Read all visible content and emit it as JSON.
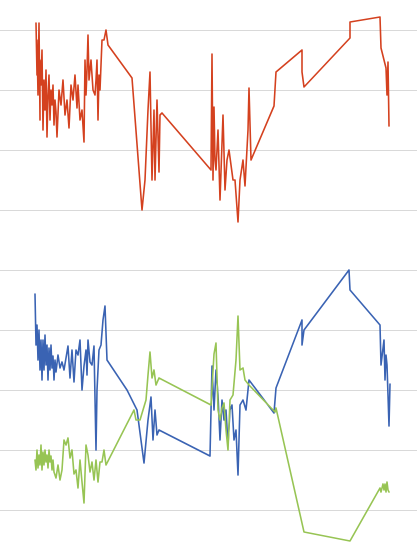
{
  "chart_data": [
    {
      "type": "line",
      "grid": true,
      "legend": "none",
      "ylim": [
        0,
        210
      ],
      "gridlines_y": [
        30,
        90,
        150,
        210
      ],
      "series": [
        {
          "color": "#d4411f",
          "points": [
            [
              36,
              23
            ],
            [
              37,
              75
            ],
            [
              37,
              40
            ],
            [
              38,
              95
            ],
            [
              39,
              23
            ],
            [
              40,
              120
            ],
            [
              40,
              60
            ],
            [
              41,
              85
            ],
            [
              42,
              50
            ],
            [
              43,
              130
            ],
            [
              44,
              80
            ],
            [
              45,
              110
            ],
            [
              46,
              70
            ],
            [
              47,
              137
            ],
            [
              48,
              95
            ],
            [
              49,
              75
            ],
            [
              50,
              120
            ],
            [
              51,
              90
            ],
            [
              52,
              105
            ],
            [
              53,
              85
            ],
            [
              54,
              125
            ],
            [
              55,
              100
            ],
            [
              56,
              112
            ],
            [
              57,
              137
            ],
            [
              59,
              90
            ],
            [
              61,
              105
            ],
            [
              63,
              80
            ],
            [
              65,
              115
            ],
            [
              67,
              100
            ],
            [
              69,
              128
            ],
            [
              71,
              85
            ],
            [
              73,
              100
            ],
            [
              75,
              75
            ],
            [
              77,
              108
            ],
            [
              78,
              85
            ],
            [
              80,
              120
            ],
            [
              82,
              110
            ],
            [
              84,
              142
            ],
            [
              85,
              60
            ],
            [
              86,
              95
            ],
            [
              87,
              70
            ],
            [
              88,
              35
            ],
            [
              89,
              80
            ],
            [
              91,
              60
            ],
            [
              93,
              90
            ],
            [
              95,
              95
            ],
            [
              96,
              80
            ],
            [
              97,
              60
            ],
            [
              98,
              120
            ],
            [
              99,
              75
            ],
            [
              100,
              90
            ],
            [
              102,
              40
            ],
            [
              104,
              40
            ],
            [
              106,
              30
            ],
            [
              108,
              45
            ],
            [
              132,
              78
            ],
            [
              142,
              210
            ],
            [
              145,
              180
            ],
            [
              148,
              110
            ],
            [
              150,
              72
            ],
            [
              152,
              180
            ],
            [
              154,
              110
            ],
            [
              155,
              180
            ],
            [
              157,
              100
            ],
            [
              159,
              172
            ],
            [
              160,
              115
            ],
            [
              162,
              113
            ],
            [
              211,
              170
            ],
            [
              212,
              54
            ],
            [
              213,
              180
            ],
            [
              214,
              107
            ],
            [
              215,
              160
            ],
            [
              216,
              170
            ],
            [
              218,
              130
            ],
            [
              220,
              200
            ],
            [
              223,
              115
            ],
            [
              225,
              190
            ],
            [
              227,
              160
            ],
            [
              229,
              150
            ],
            [
              233,
              180
            ],
            [
              235,
              180
            ],
            [
              238,
              222
            ],
            [
              240,
              180
            ],
            [
              243,
              160
            ],
            [
              245,
              186
            ],
            [
              248,
              130
            ],
            [
              249,
              88
            ],
            [
              251,
              160
            ],
            [
              274,
              106
            ],
            [
              276,
              72
            ],
            [
              302,
              50
            ],
            [
              302,
              72
            ],
            [
              304,
              87
            ],
            [
              350,
              38
            ],
            [
              350,
              22
            ],
            [
              380,
              17
            ],
            [
              381,
              48
            ],
            [
              384,
              60
            ],
            [
              386,
              68
            ],
            [
              387,
              95
            ],
            [
              388,
              62
            ],
            [
              389,
              126
            ]
          ]
        }
      ]
    },
    {
      "type": "line",
      "grid": true,
      "legend": "none",
      "ylim": [
        0,
        570
      ],
      "gridlines_y": [
        270,
        330,
        390,
        450,
        510
      ],
      "series": [
        {
          "color": "#3a63b3",
          "points": [
            [
              35,
              294
            ],
            [
              36,
              345
            ],
            [
              37,
              325
            ],
            [
              38,
              360
            ],
            [
              39,
              330
            ],
            [
              40,
              370
            ],
            [
              41,
              340
            ],
            [
              42,
              380
            ],
            [
              43,
              340
            ],
            [
              44,
              370
            ],
            [
              45,
              335
            ],
            [
              46,
              365
            ],
            [
              47,
              345
            ],
            [
              48,
              380
            ],
            [
              49,
              348
            ],
            [
              50,
              370
            ],
            [
              51,
              345
            ],
            [
              52,
              368
            ],
            [
              53,
              356
            ],
            [
              54,
              380
            ],
            [
              55,
              360
            ],
            [
              56,
              372
            ],
            [
              58,
              355
            ],
            [
              60,
              368
            ],
            [
              62,
              362
            ],
            [
              64,
              370
            ],
            [
              66,
              358
            ],
            [
              68,
              346
            ],
            [
              70,
              378
            ],
            [
              72,
              350
            ],
            [
              74,
              382
            ],
            [
              76,
              350
            ],
            [
              78,
              355
            ],
            [
              80,
              340
            ],
            [
              82,
              390
            ],
            [
              84,
              366
            ],
            [
              86,
              350
            ],
            [
              87,
              375
            ],
            [
              88,
              340
            ],
            [
              90,
              362
            ],
            [
              92,
              365
            ],
            [
              94,
              346
            ],
            [
              96,
              450
            ],
            [
              97,
              390
            ],
            [
              99,
              350
            ],
            [
              101,
              345
            ],
            [
              103,
              320
            ],
            [
              105,
              306
            ],
            [
              107,
              360
            ],
            [
              127,
              390
            ],
            [
              137,
              410
            ],
            [
              144,
              463
            ],
            [
              148,
              420
            ],
            [
              151,
              397
            ],
            [
              153,
              440
            ],
            [
              155,
              410
            ],
            [
              157,
              435
            ],
            [
              159,
              430
            ],
            [
              210,
              456
            ],
            [
              212,
              366
            ],
            [
              214,
              410
            ],
            [
              216,
              370
            ],
            [
              218,
              395
            ],
            [
              220,
              440
            ],
            [
              222,
              400
            ],
            [
              224,
              420
            ],
            [
              226,
              410
            ],
            [
              228,
              445
            ],
            [
              230,
              410
            ],
            [
              232,
              405
            ],
            [
              234,
              440
            ],
            [
              236,
              430
            ],
            [
              238,
              475
            ],
            [
              240,
              405
            ],
            [
              243,
              400
            ],
            [
              246,
              410
            ],
            [
              249,
              380
            ],
            [
              274,
              413
            ],
            [
              276,
              388
            ],
            [
              302,
              320
            ],
            [
              302,
              345
            ],
            [
              304,
              330
            ],
            [
              349,
              270
            ],
            [
              350,
              290
            ],
            [
              380,
              325
            ],
            [
              381,
              365
            ],
            [
              384,
              340
            ],
            [
              385,
              380
            ],
            [
              386,
              355
            ],
            [
              387,
              365
            ],
            [
              388,
              395
            ],
            [
              389,
              426
            ],
            [
              390,
              384
            ]
          ]
        },
        {
          "color": "#97c454",
          "points": [
            [
              35,
              460
            ],
            [
              36,
              470
            ],
            [
              37,
              450
            ],
            [
              38,
              468
            ],
            [
              39,
              455
            ],
            [
              40,
              465
            ],
            [
              41,
              445
            ],
            [
              42,
              470
            ],
            [
              43,
              452
            ],
            [
              44,
              465
            ],
            [
              45,
              450
            ],
            [
              46,
              462
            ],
            [
              47,
              455
            ],
            [
              48,
              468
            ],
            [
              49,
              450
            ],
            [
              50,
              462
            ],
            [
              51,
              456
            ],
            [
              52,
              470
            ],
            [
              53,
              460
            ],
            [
              54,
              472
            ],
            [
              56,
              478
            ],
            [
              58,
              465
            ],
            [
              60,
              480
            ],
            [
              62,
              470
            ],
            [
              64,
              440
            ],
            [
              66,
              445
            ],
            [
              68,
              438
            ],
            [
              70,
              458
            ],
            [
              72,
              450
            ],
            [
              74,
              474
            ],
            [
              76,
              470
            ],
            [
              78,
              488
            ],
            [
              80,
              460
            ],
            [
              82,
              482
            ],
            [
              84,
              503
            ],
            [
              86,
              445
            ],
            [
              88,
              455
            ],
            [
              90,
              472
            ],
            [
              92,
              462
            ],
            [
              94,
              480
            ],
            [
              96,
              460
            ],
            [
              98,
              482
            ],
            [
              100,
              462
            ],
            [
              102,
              462
            ],
            [
              104,
              450
            ],
            [
              106,
              465
            ],
            [
              134,
              410
            ],
            [
              136,
              420
            ],
            [
              140,
              420
            ],
            [
              143,
              410
            ],
            [
              146,
              400
            ],
            [
              148,
              375
            ],
            [
              150,
              352
            ],
            [
              152,
              378
            ],
            [
              154,
              370
            ],
            [
              156,
              385
            ],
            [
              159,
              378
            ],
            [
              211,
              405
            ],
            [
              214,
              354
            ],
            [
              216,
              343
            ],
            [
              218,
              410
            ],
            [
              220,
              420
            ],
            [
              222,
              408
            ],
            [
              224,
              403
            ],
            [
              226,
              430
            ],
            [
              228,
              450
            ],
            [
              230,
              400
            ],
            [
              233,
              395
            ],
            [
              236,
              360
            ],
            [
              238,
              316
            ],
            [
              240,
              370
            ],
            [
              243,
              368
            ],
            [
              245,
              380
            ],
            [
              249,
              385
            ],
            [
              275,
              412
            ],
            [
              276,
              408
            ],
            [
              304,
              532
            ],
            [
              350,
              541
            ],
            [
              380,
              488
            ],
            [
              381,
              492
            ],
            [
              383,
              484
            ],
            [
              384,
              490
            ],
            [
              385,
              484
            ],
            [
              386,
              492
            ],
            [
              387,
              482
            ],
            [
              388,
              490
            ],
            [
              389,
              492
            ]
          ]
        }
      ]
    }
  ]
}
